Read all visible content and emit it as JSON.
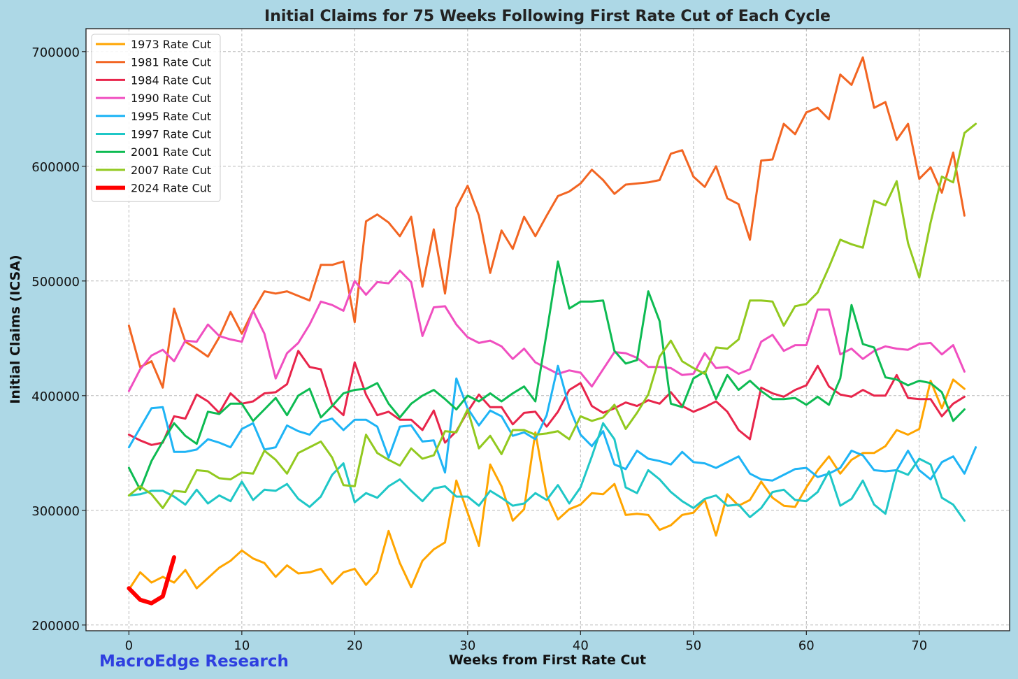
{
  "watermark": "MacroEdge Research",
  "colors": {
    "background": "#add8e6",
    "plot_bg": "#ffffff",
    "watermark": "#2e3fe0",
    "grid": "#b0b0b0"
  },
  "chart_data": {
    "type": "line",
    "title": "Initial Claims for 75 Weeks Following First Rate Cut of Each Cycle",
    "xlabel": "Weeks from First Rate Cut",
    "ylabel": "Initial Claims (ICSA)",
    "xlim": [
      -3.8,
      78
    ],
    "ylim": [
      195000,
      720000
    ],
    "xticks": [
      0,
      10,
      20,
      30,
      40,
      50,
      60,
      70
    ],
    "yticks": [
      200000,
      300000,
      400000,
      500000,
      600000,
      700000
    ],
    "grid": true,
    "legend_position": "top-left",
    "series": [
      {
        "name": "1973 Rate Cut",
        "color": "#ffa500",
        "width": 3,
        "values": [
          231000,
          246000,
          237000,
          242000,
          237000,
          248000,
          232000,
          241000,
          250000,
          256000,
          265000,
          258000,
          254000,
          242000,
          252000,
          245000,
          246000,
          249000,
          236000,
          246000,
          249000,
          235000,
          246000,
          282000,
          254000,
          233000,
          256000,
          266000,
          272000,
          326000,
          298000,
          269000,
          340000,
          321000,
          291000,
          301000,
          368000,
          313000,
          292000,
          301000,
          305000,
          315000,
          314000,
          323000,
          296000,
          297000,
          296000,
          283000,
          287000,
          296000,
          298000,
          309000,
          278000,
          314000,
          304000,
          309000,
          325000,
          311000,
          304000,
          303000,
          320000,
          335000,
          347000,
          332000,
          344000,
          350000,
          350000,
          356000,
          370000,
          366000,
          371000,
          413000,
          389000,
          414000,
          406000
        ]
      },
      {
        "name": "1981 Rate Cut",
        "color": "#f26522",
        "width": 3,
        "values": [
          461000,
          425000,
          430000,
          407000,
          476000,
          447000,
          441000,
          434000,
          451000,
          473000,
          454000,
          474000,
          491000,
          489000,
          491000,
          487000,
          483000,
          514000,
          514000,
          517000,
          464000,
          552000,
          558000,
          551000,
          539000,
          556000,
          495000,
          545000,
          489000,
          564000,
          583000,
          557000,
          507000,
          544000,
          528000,
          556000,
          539000,
          557000,
          574000,
          578000,
          585000,
          597000,
          588000,
          576000,
          584000,
          585000,
          586000,
          588000,
          611000,
          614000,
          591000,
          582000,
          600000,
          572000,
          567000,
          536000,
          605000,
          606000,
          637000,
          628000,
          647000,
          651000,
          641000,
          680000,
          671000,
          695000,
          651000,
          656000,
          623000,
          637000,
          589000,
          599000,
          577000,
          612000,
          557000
        ]
      },
      {
        "name": "1984 Rate Cut",
        "color": "#e8254b",
        "width": 3,
        "values": [
          366000,
          361000,
          357000,
          359000,
          382000,
          380000,
          401000,
          395000,
          385000,
          402000,
          393000,
          395000,
          402000,
          403000,
          410000,
          439000,
          425000,
          423000,
          392000,
          383000,
          429000,
          401000,
          383000,
          386000,
          379000,
          379000,
          370000,
          387000,
          359000,
          369000,
          386000,
          401000,
          390000,
          390000,
          375000,
          385000,
          386000,
          373000,
          386000,
          405000,
          411000,
          391000,
          385000,
          389000,
          394000,
          391000,
          396000,
          393000,
          403000,
          391000,
          386000,
          390000,
          395000,
          386000,
          370000,
          362000,
          407000,
          402000,
          399000,
          405000,
          409000,
          426000,
          408000,
          401000,
          399000,
          405000,
          400000,
          400000,
          418000,
          398000,
          397000,
          397000,
          382000,
          393000,
          399000
        ]
      },
      {
        "name": "1990 Rate Cut",
        "color": "#f04fc0",
        "width": 3,
        "values": [
          404000,
          423000,
          435000,
          440000,
          430000,
          448000,
          447000,
          462000,
          452000,
          449000,
          447000,
          474000,
          454000,
          415000,
          437000,
          446000,
          462000,
          482000,
          479000,
          474000,
          500000,
          488000,
          499000,
          498000,
          509000,
          499000,
          452000,
          477000,
          478000,
          462000,
          451000,
          446000,
          448000,
          443000,
          432000,
          441000,
          429000,
          424000,
          419000,
          422000,
          420000,
          408000,
          423000,
          438000,
          437000,
          433000,
          425000,
          425000,
          424000,
          418000,
          419000,
          437000,
          424000,
          425000,
          419000,
          423000,
          447000,
          453000,
          439000,
          444000,
          444000,
          475000,
          475000,
          436000,
          441000,
          432000,
          439000,
          443000,
          441000,
          440000,
          445000,
          446000,
          436000,
          444000,
          421000
        ]
      },
      {
        "name": "1995 Rate Cut",
        "color": "#1eb4f5",
        "width": 3,
        "values": [
          355000,
          372000,
          389000,
          390000,
          351000,
          351000,
          353000,
          362000,
          359000,
          355000,
          371000,
          376000,
          353000,
          355000,
          374000,
          369000,
          366000,
          377000,
          380000,
          370000,
          379000,
          379000,
          373000,
          346000,
          373000,
          374000,
          360000,
          361000,
          333000,
          415000,
          389000,
          374000,
          387000,
          382000,
          365000,
          368000,
          362000,
          383000,
          426000,
          390000,
          366000,
          356000,
          369000,
          340000,
          336000,
          352000,
          345000,
          343000,
          340000,
          351000,
          342000,
          341000,
          337000,
          342000,
          347000,
          332000,
          327000,
          326000,
          331000,
          336000,
          337000,
          329000,
          332000,
          337000,
          352000,
          348000,
          335000,
          334000,
          335000,
          352000,
          335000,
          327000,
          342000,
          347000,
          332000,
          355000
        ]
      },
      {
        "name": "1997 Rate Cut",
        "color": "#1fc7c7",
        "width": 3,
        "values": [
          313000,
          314000,
          317000,
          317000,
          312000,
          305000,
          318000,
          306000,
          313000,
          308000,
          325000,
          309000,
          318000,
          317000,
          323000,
          310000,
          303000,
          312000,
          331000,
          341000,
          307000,
          315000,
          311000,
          321000,
          327000,
          317000,
          308000,
          319000,
          321000,
          312000,
          312000,
          304000,
          317000,
          311000,
          304000,
          306000,
          315000,
          309000,
          322000,
          306000,
          320000,
          347000,
          376000,
          362000,
          320000,
          315000,
          335000,
          327000,
          316000,
          308000,
          302000,
          310000,
          313000,
          304000,
          305000,
          294000,
          302000,
          316000,
          318000,
          309000,
          308000,
          316000,
          334000,
          304000,
          310000,
          326000,
          305000,
          297000,
          335000,
          331000,
          345000,
          340000,
          311000,
          305000,
          291000
        ]
      },
      {
        "name": "2001 Rate Cut",
        "color": "#0dbb52",
        "width": 3,
        "values": [
          337000,
          318000,
          343000,
          360000,
          376000,
          365000,
          358000,
          386000,
          384000,
          393000,
          393000,
          378000,
          388000,
          398000,
          383000,
          400000,
          406000,
          381000,
          391000,
          402000,
          405000,
          406000,
          411000,
          393000,
          381000,
          393000,
          400000,
          405000,
          397000,
          388000,
          400000,
          395000,
          402000,
          395000,
          402000,
          408000,
          395000,
          455000,
          517000,
          476000,
          482000,
          482000,
          483000,
          439000,
          428000,
          431000,
          491000,
          465000,
          393000,
          390000,
          415000,
          421000,
          397000,
          418000,
          405000,
          413000,
          404000,
          397000,
          397000,
          398000,
          392000,
          399000,
          392000,
          415000,
          479000,
          445000,
          442000,
          416000,
          414000,
          409000,
          413000,
          411000,
          403000,
          378000,
          388000
        ]
      },
      {
        "name": "2007 Rate Cut",
        "color": "#92c91f",
        "width": 3,
        "values": [
          313000,
          321000,
          314000,
          302000,
          317000,
          316000,
          335000,
          334000,
          328000,
          327000,
          333000,
          332000,
          352000,
          344000,
          332000,
          350000,
          355000,
          360000,
          346000,
          322000,
          321000,
          366000,
          350000,
          344000,
          339000,
          354000,
          345000,
          348000,
          369000,
          368000,
          388000,
          354000,
          365000,
          349000,
          370000,
          370000,
          366000,
          367000,
          369000,
          362000,
          382000,
          378000,
          381000,
          392000,
          371000,
          385000,
          401000,
          434000,
          448000,
          430000,
          424000,
          419000,
          442000,
          441000,
          449000,
          483000,
          483000,
          482000,
          461000,
          478000,
          480000,
          490000,
          512000,
          536000,
          532000,
          529000,
          570000,
          566000,
          587000,
          533000,
          503000,
          551000,
          591000,
          586000,
          629000,
          637000
        ]
      },
      {
        "name": "2024 Rate Cut",
        "color": "#ff0000",
        "width": 6,
        "values": [
          232000,
          222000,
          219000,
          225000,
          259000
        ]
      }
    ]
  }
}
